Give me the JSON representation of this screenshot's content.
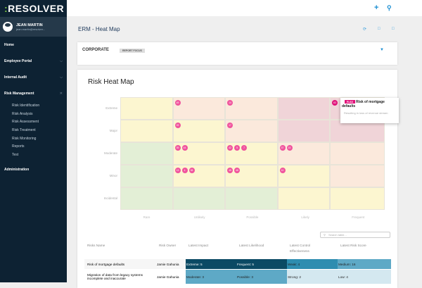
{
  "app": {
    "logo": "RESOLVER",
    "logo_prefix": ":"
  },
  "user": {
    "name": "JEAN MARTIN",
    "email": "jean.martin@resolver..."
  },
  "sidebar": {
    "items": [
      {
        "label": "Home"
      },
      {
        "label": "Employee Portal",
        "icon": "chevron-down"
      },
      {
        "label": "Internal Audit",
        "icon": "chevron-down"
      },
      {
        "label": "Risk Management",
        "icon": "close"
      }
    ],
    "sub_items": [
      "Risk Identification",
      "Risk Analysis",
      "Risk Assessment",
      "Risk Treatment",
      "Risk Monitoring",
      "Reports",
      "Test"
    ],
    "admin": "Administration"
  },
  "topbar": {
    "icons": [
      "plus-icon",
      "search-icon"
    ]
  },
  "page": {
    "title": "ERM - Heat Map",
    "actions": [
      "refresh-icon",
      "document-icon",
      "export-icon"
    ]
  },
  "focus": {
    "label": "CORPORATE",
    "badge": "REPORT FOCUS",
    "icon": "filter-icon"
  },
  "heatmap": {
    "title": "Risk Heat Map",
    "rows": [
      "Extreme",
      "Major",
      "Moderate",
      "Minor",
      "Incidental"
    ],
    "columns": [
      "Rare",
      "Unlikely",
      "Possible",
      "Likely",
      "Frequent"
    ],
    "colors": {
      "G": "#e3efd6",
      "Y": "#fcf6d0",
      "O": "#fbe9dc",
      "R": "#f0d4d8"
    },
    "levels": [
      [
        "Y",
        "O",
        "O",
        "R",
        "R"
      ],
      [
        "Y",
        "Y",
        "O",
        "R",
        "R"
      ],
      [
        "G",
        "Y",
        "Y",
        "O",
        "O"
      ],
      [
        "G",
        "Y",
        "Y",
        "Y",
        "O"
      ],
      [
        "G",
        "G",
        "G",
        "Y",
        "Y"
      ]
    ],
    "risks": [
      [
        [],
        [
          "49"
        ],
        [
          "14"
        ],
        [],
        [
          "63"
        ]
      ],
      [
        [],
        [
          "09"
        ],
        [
          "17"
        ],
        [],
        []
      ],
      [
        [],
        [
          "39",
          "44"
        ],
        [
          "42",
          "5",
          "7"
        ],
        [
          "37",
          "15"
        ],
        []
      ],
      [
        [],
        [
          "13",
          "4",
          "38"
        ],
        [
          "45",
          "48"
        ],
        [
          "10"
        ],
        []
      ],
      [
        [],
        [],
        [],
        [],
        []
      ]
    ],
    "tooltip": {
      "id": "R-63",
      "title": "Risk of mortgage defaults",
      "description": "Resulting in loss of revenue stream"
    }
  },
  "table": {
    "search_placeholder": "Search table...",
    "headers": [
      "Risks Name",
      "Risk Owner",
      "Latest Impact",
      "Latest Likelihood",
      "Latest Control Effectiveness",
      "Latest Risk Score"
    ],
    "rows": [
      {
        "cells": [
          "Risk of mortgage defaults",
          "Jamie Gahunia",
          "Extreme: 5",
          "Frequent: 5",
          "Weak: 4",
          "Medium: 16"
        ],
        "colors": [
          "#0b4a64",
          "#0b4a64",
          "#2e8db0",
          "#5ea9c6"
        ]
      },
      {
        "cells": [
          "Migration of data from legacy systems incomplete and inaccurate",
          "Jamie Gahunia",
          "Moderate: 3",
          "Possible: 3",
          "Strong: 2",
          "Low: 4"
        ],
        "colors": [
          "#5ea9c6",
          "#5ea9c6",
          "#d4e8f0",
          "#d4e8f0"
        ]
      }
    ]
  }
}
